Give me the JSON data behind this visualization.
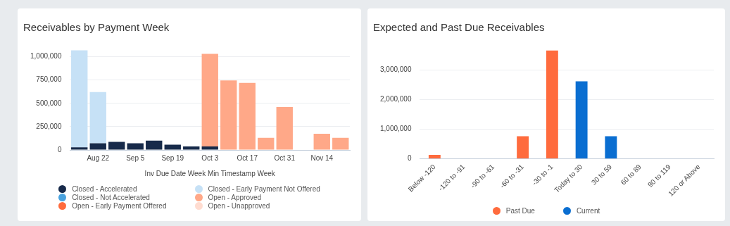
{
  "chart_data": [
    {
      "type": "bar",
      "title": "Receivables by Payment Week",
      "xlabel": "Inv Due Date Week Min Timestamp Week",
      "categories": [
        null,
        "Aug 22",
        null,
        "Sep 5",
        null,
        "Sep 19",
        null,
        "Oct 3",
        null,
        "Oct 17",
        null,
        "Oct 31",
        null,
        "Nov 14",
        null
      ],
      "stacked": true,
      "series": [
        {
          "name": "Closed - Accelerated",
          "color": "#172a4a",
          "values": [
            28000,
            71000,
            86000,
            71000,
            101000,
            56000,
            37000,
            37000,
            0,
            0,
            0,
            0,
            0,
            0,
            0
          ]
        },
        {
          "name": "Closed - Not Accelerated",
          "color": "#4aa3df",
          "values": [
            0,
            0,
            0,
            0,
            0,
            0,
            0,
            0,
            0,
            0,
            0,
            0,
            0,
            0,
            0
          ]
        },
        {
          "name": "Open - Early Payment Offered",
          "color": "#ff6b3d",
          "values": [
            0,
            0,
            0,
            0,
            0,
            0,
            0,
            0,
            0,
            0,
            0,
            0,
            0,
            0,
            0
          ]
        },
        {
          "name": "Closed - Early Payment Not Offered",
          "color": "#c6e1f6",
          "values": [
            1040000,
            550000,
            0,
            0,
            0,
            0,
            0,
            0,
            0,
            0,
            0,
            0,
            0,
            0,
            0
          ]
        },
        {
          "name": "Open - Approved",
          "color": "#ffa888",
          "values": [
            0,
            0,
            0,
            0,
            0,
            0,
            0,
            993000,
            745000,
            719000,
            130000,
            460000,
            0,
            173000,
            130000
          ]
        },
        {
          "name": "Open - Unapproved",
          "color": "#ffdcd0",
          "values": [
            0,
            0,
            0,
            0,
            0,
            0,
            0,
            0,
            0,
            0,
            0,
            0,
            0,
            0,
            0
          ]
        }
      ],
      "ylim": [
        0,
        1080000
      ],
      "yticks": [
        {
          "value": 0,
          "label": "0"
        },
        {
          "value": 250000,
          "label": "250,000"
        },
        {
          "value": 500000,
          "label": "500,000"
        },
        {
          "value": 750000,
          "label": "750,000"
        },
        {
          "value": 1000000,
          "label": "1,000,000"
        }
      ],
      "grid": "y",
      "legend": "bottom"
    },
    {
      "type": "bar",
      "title": "Expected and Past Due Receivables",
      "categories": [
        "Below -120",
        "-120 to -91",
        "-90 to -61",
        "-60 to -31",
        "-30 to -1",
        "Today to 30",
        "30 to 59",
        "60 to 89",
        "90 to 119",
        "120 or Above"
      ],
      "stacked": true,
      "series": [
        {
          "name": "Past Due",
          "color": "#ff6b3d",
          "values": [
            130000,
            0,
            0,
            760000,
            3660000,
            null,
            null,
            null,
            null,
            null
          ]
        },
        {
          "name": "Current",
          "color": "#0a6ed1",
          "values": [
            null,
            null,
            null,
            null,
            null,
            2620000,
            760000,
            0,
            0,
            0
          ]
        }
      ],
      "ylim": [
        0,
        3700000
      ],
      "yticks": [
        {
          "value": 0,
          "label": "0"
        },
        {
          "value": 1000000,
          "label": "1,000,000"
        },
        {
          "value": 2000000,
          "label": "2,000,000"
        },
        {
          "value": 3000000,
          "label": "3,000,000"
        }
      ],
      "grid": "y",
      "legend": "bottom"
    }
  ]
}
